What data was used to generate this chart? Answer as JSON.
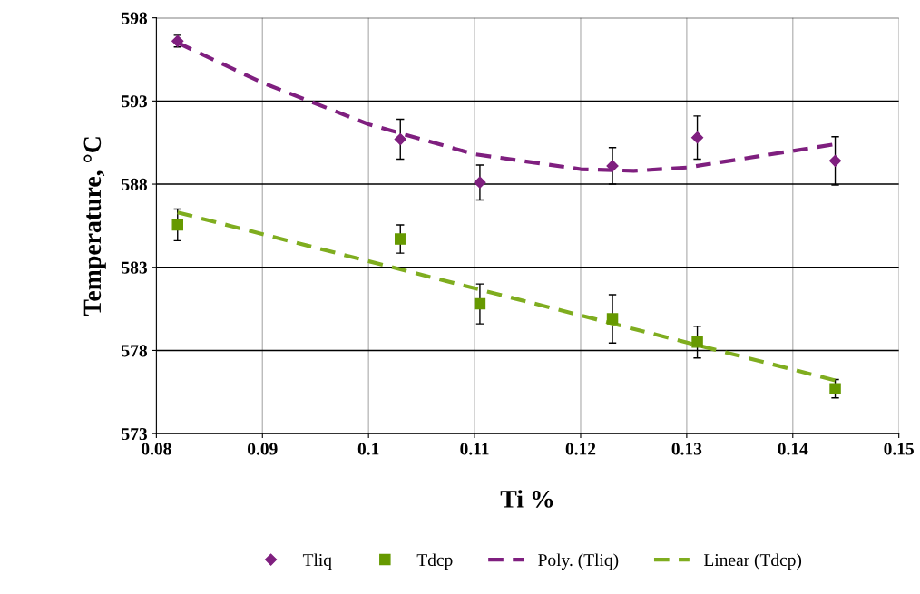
{
  "chart_data": {
    "type": "scatter",
    "xlabel": "Ti %",
    "ylabel": "Temperature, °C",
    "xlim": [
      0.08,
      0.15
    ],
    "xticks": [
      0.08,
      0.09,
      0.1,
      0.11,
      0.12,
      0.13,
      0.14,
      0.15
    ],
    "ylim": [
      573,
      598
    ],
    "yticks": [
      573,
      578,
      583,
      588,
      593,
      598
    ],
    "grid": true,
    "legend": "bottom",
    "series": [
      {
        "name": "Tliq",
        "marker": "diamond",
        "color": "#7f1f7f",
        "x": [
          0.082,
          0.103,
          0.1105,
          0.123,
          0.131,
          0.144
        ],
        "values": [
          596.6,
          590.7,
          588.1,
          589.1,
          590.8,
          589.4
        ],
        "errors": [
          0.35,
          1.2,
          1.05,
          1.1,
          1.3,
          1.45
        ]
      },
      {
        "name": "Tdcp",
        "marker": "square",
        "color": "#669900",
        "x": [
          0.082,
          0.103,
          0.1105,
          0.123,
          0.131,
          0.144
        ],
        "values": [
          585.55,
          584.7,
          580.8,
          579.9,
          578.5,
          575.7
        ],
        "errors": [
          0.95,
          0.85,
          1.2,
          1.45,
          0.95,
          0.55
        ]
      },
      {
        "name": "Poly. (Tliq)",
        "type": "line",
        "line_style": "dashed",
        "color": "#7f1f7f",
        "x": [
          0.082,
          0.09,
          0.1,
          0.11,
          0.12,
          0.125,
          0.13,
          0.14,
          0.144
        ],
        "values": [
          596.5,
          594.1,
          591.6,
          589.8,
          588.9,
          588.8,
          589.0,
          590.0,
          590.4
        ]
      },
      {
        "name": "Linear (Tdcp)",
        "type": "line",
        "line_style": "dashed",
        "color": "#7fad1f",
        "x": [
          0.082,
          0.144
        ],
        "values": [
          586.3,
          576.2
        ]
      }
    ]
  }
}
